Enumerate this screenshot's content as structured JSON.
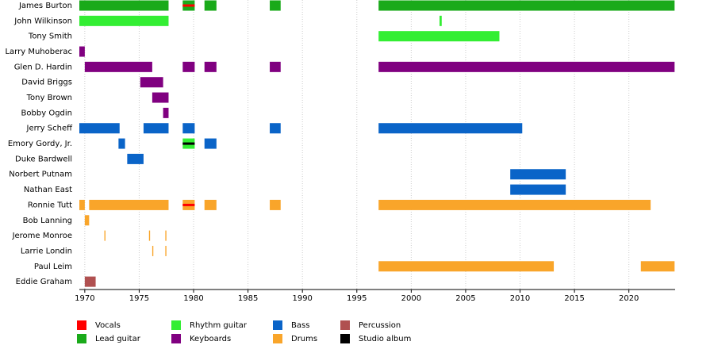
{
  "chart_data": {
    "type": "timeline",
    "xlim": [
      1969.5,
      2024.25
    ],
    "xticks": [
      1970,
      1975,
      1980,
      1985,
      1990,
      1995,
      2000,
      2005,
      2010,
      2015,
      2020
    ],
    "grid": true,
    "roles": [
      {
        "name": "Vocals",
        "color": "#ff0000",
        "style": "stripe"
      },
      {
        "name": "Lead guitar",
        "color": "#1aaa1a",
        "style": "bar"
      },
      {
        "name": "Rhythm guitar",
        "color": "#33ee33",
        "style": "bar"
      },
      {
        "name": "Keyboards",
        "color": "#800080",
        "style": "bar"
      },
      {
        "name": "Bass",
        "color": "#0a64c8",
        "style": "bar"
      },
      {
        "name": "Drums",
        "color": "#f9a52a",
        "style": "bar"
      },
      {
        "name": "Percussion",
        "color": "#b05050",
        "style": "bar"
      },
      {
        "name": "Studio album",
        "color": "#000000",
        "style": "stripe"
      }
    ],
    "rows": [
      {
        "name": "James Burton",
        "segments": [
          {
            "role": "Lead guitar",
            "start": 1969.5,
            "end": 1977.7
          },
          {
            "role": "Lead guitar",
            "start": 1979.0,
            "end": 1980.1
          },
          {
            "role": "Vocals",
            "start": 1979.0,
            "end": 1980.1
          },
          {
            "role": "Lead guitar",
            "start": 1981.0,
            "end": 1982.1
          },
          {
            "role": "Lead guitar",
            "start": 1987.0,
            "end": 1988.0
          },
          {
            "role": "Lead guitar",
            "start": 1997.0,
            "end": 2024.2
          }
        ]
      },
      {
        "name": "John Wilkinson",
        "segments": [
          {
            "role": "Rhythm guitar",
            "start": 1969.5,
            "end": 1977.7
          },
          {
            "role": "Rhythm guitar",
            "start": 2002.6,
            "end": 2002.8
          }
        ]
      },
      {
        "name": "Tony Smith",
        "segments": [
          {
            "role": "Rhythm guitar",
            "start": 1997.0,
            "end": 2008.1
          }
        ]
      },
      {
        "name": "Larry Muhoberac",
        "segments": [
          {
            "role": "Keyboards",
            "start": 1969.5,
            "end": 1970.0
          }
        ]
      },
      {
        "name": "Glen D. Hardin",
        "segments": [
          {
            "role": "Keyboards",
            "start": 1970.0,
            "end": 1976.2
          },
          {
            "role": "Keyboards",
            "start": 1979.0,
            "end": 1980.1
          },
          {
            "role": "Keyboards",
            "start": 1981.0,
            "end": 1982.1
          },
          {
            "role": "Keyboards",
            "start": 1987.0,
            "end": 1988.0
          },
          {
            "role": "Keyboards",
            "start": 1997.0,
            "end": 2024.2
          }
        ]
      },
      {
        "name": "David Briggs",
        "segments": [
          {
            "role": "Keyboards",
            "start": 1975.1,
            "end": 1977.2
          }
        ]
      },
      {
        "name": "Tony Brown",
        "segments": [
          {
            "role": "Keyboards",
            "start": 1976.2,
            "end": 1977.7
          }
        ]
      },
      {
        "name": "Bobby Ogdin",
        "segments": [
          {
            "role": "Keyboards",
            "start": 1977.2,
            "end": 1977.7
          }
        ]
      },
      {
        "name": "Jerry Scheff",
        "segments": [
          {
            "role": "Bass",
            "start": 1969.5,
            "end": 1973.2
          },
          {
            "role": "Bass",
            "start": 1975.4,
            "end": 1977.7
          },
          {
            "role": "Bass",
            "start": 1979.0,
            "end": 1980.1
          },
          {
            "role": "Bass",
            "start": 1987.0,
            "end": 1988.0
          },
          {
            "role": "Bass",
            "start": 1997.0,
            "end": 2010.2
          }
        ]
      },
      {
        "name": "Emory Gordy, Jr.",
        "segments": [
          {
            "role": "Bass",
            "start": 1973.1,
            "end": 1973.7
          },
          {
            "role": "Rhythm guitar",
            "start": 1979.0,
            "end": 1980.1
          },
          {
            "role": "Studio album",
            "start": 1979.0,
            "end": 1980.1
          },
          {
            "role": "Bass",
            "start": 1981.0,
            "end": 1982.1
          }
        ]
      },
      {
        "name": "Duke Bardwell",
        "segments": [
          {
            "role": "Bass",
            "start": 1973.9,
            "end": 1975.4
          }
        ]
      },
      {
        "name": "Norbert Putnam",
        "segments": [
          {
            "role": "Bass",
            "start": 2009.1,
            "end": 2014.2
          }
        ]
      },
      {
        "name": "Nathan East",
        "segments": [
          {
            "role": "Bass",
            "start": 2009.1,
            "end": 2014.2
          }
        ]
      },
      {
        "name": "Ronnie Tutt",
        "segments": [
          {
            "role": "Drums",
            "start": 1969.5,
            "end": 1970.0
          },
          {
            "role": "Drums",
            "start": 1970.4,
            "end": 1977.7
          },
          {
            "role": "Drums",
            "start": 1979.0,
            "end": 1980.1
          },
          {
            "role": "Vocals",
            "start": 1979.0,
            "end": 1980.1
          },
          {
            "role": "Drums",
            "start": 1981.0,
            "end": 1982.1
          },
          {
            "role": "Drums",
            "start": 1987.0,
            "end": 1988.0
          },
          {
            "role": "Drums",
            "start": 1997.0,
            "end": 2022.0
          }
        ]
      },
      {
        "name": "Bob Lanning",
        "segments": [
          {
            "role": "Drums",
            "start": 1970.0,
            "end": 1970.4
          }
        ]
      },
      {
        "name": "Jerome Monroe",
        "segments": [
          {
            "role": "Drums",
            "start": 1971.8,
            "end": 1971.9
          },
          {
            "role": "Drums",
            "start": 1975.9,
            "end": 1976.0
          },
          {
            "role": "Drums",
            "start": 1977.4,
            "end": 1977.5
          }
        ]
      },
      {
        "name": "Larrie Londin",
        "segments": [
          {
            "role": "Drums",
            "start": 1976.2,
            "end": 1976.3
          },
          {
            "role": "Drums",
            "start": 1977.4,
            "end": 1977.5
          }
        ]
      },
      {
        "name": "Paul Leim",
        "segments": [
          {
            "role": "Drums",
            "start": 1997.0,
            "end": 2013.1
          },
          {
            "role": "Drums",
            "start": 2021.1,
            "end": 2024.2
          }
        ]
      },
      {
        "name": "Eddie Graham",
        "segments": [
          {
            "role": "Percussion",
            "start": 1970.0,
            "end": 1971.0
          }
        ]
      }
    ]
  }
}
